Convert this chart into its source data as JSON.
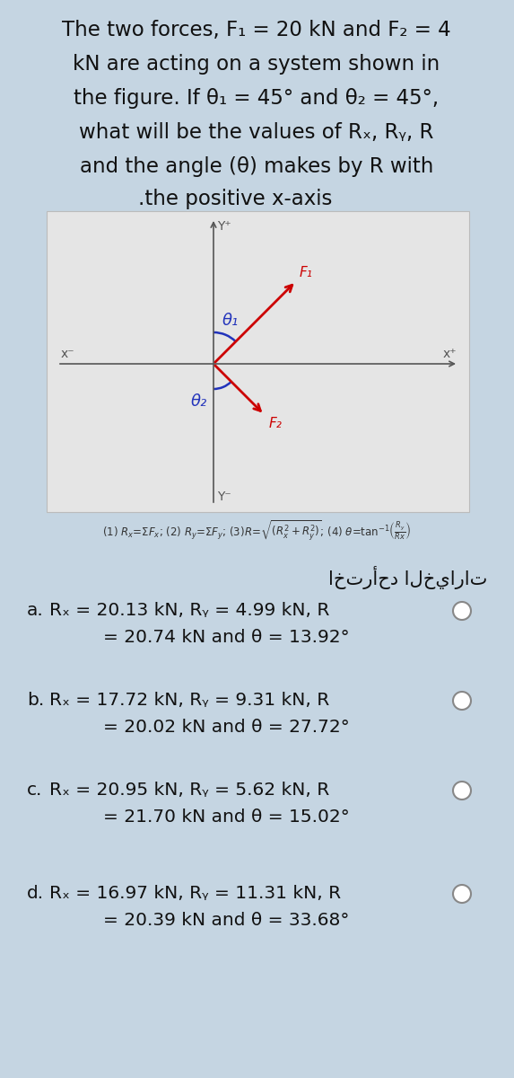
{
  "bg_color": "#c5d5e2",
  "diagram_bg": "#e5e5e5",
  "title_lines": [
    "The two forces, F₁ = 20 kN and F₂ = 4",
    "kN are acting on a system shown in",
    "the figure. If θ₁ = 45° and θ₂ = 45°,",
    "what will be the values of Rₓ, Rᵧ, R",
    "and the angle (θ) makes by R with",
    ".the positive x-axis"
  ],
  "options": [
    {
      "label": "a.",
      "line1": "Rₓ = 20.13 kN, Rᵧ = 4.99 kN, R",
      "line2": "= 20.74 kN and θ = 13.92°"
    },
    {
      "label": "b.",
      "line1": "Rₓ = 17.72 kN, Rᵧ = 9.31 kN, R",
      "line2": "= 20.02 kN and θ = 27.72°"
    },
    {
      "label": "c.",
      "line1": "Rₓ = 20.95 kN, Rᵧ = 5.62 kN, R",
      "line2": "= 21.70 kN and θ = 15.02°"
    },
    {
      "label": "d.",
      "line1": "Rₓ = 16.97 kN, Rᵧ = 11.31 kN, R",
      "line2": "= 20.39 kN and θ = 33.68°"
    }
  ],
  "arrow_color": "#cc0000",
  "axis_color": "#555555",
  "angle_color": "#2233bb",
  "text_color": "#111111",
  "arabic_text": "اخترأحد الخيارات",
  "title_fontsize": 16.5,
  "option_fontsize": 14.5,
  "formula_fontsize": 8.5
}
